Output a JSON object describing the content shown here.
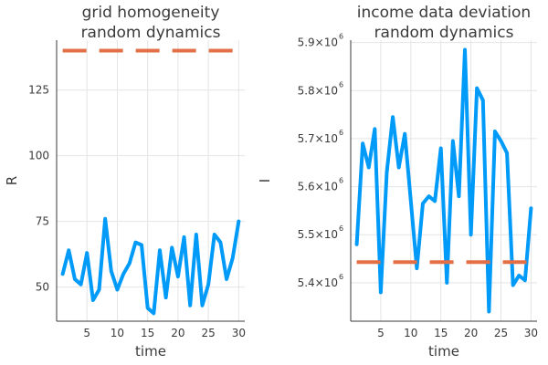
{
  "colors": {
    "series": "#009AF9",
    "reference": "#E26F46"
  },
  "chart_data": [
    {
      "type": "line",
      "title_lines": [
        "grid homogeneity",
        "random dynamics"
      ],
      "xlabel": "time",
      "ylabel": "R",
      "xlim": [
        0,
        31
      ],
      "ylim": [
        37,
        144
      ],
      "xticks": [
        5,
        10,
        15,
        20,
        25,
        30
      ],
      "yticks": [
        50,
        75,
        100,
        125
      ],
      "ytick_labels": [
        "50",
        "75",
        "100",
        "125"
      ],
      "grid": true,
      "series": [
        {
          "style": "solid",
          "x": [
            1,
            2,
            3,
            4,
            5,
            6,
            7,
            8,
            9,
            10,
            11,
            12,
            13,
            14,
            15,
            16,
            17,
            18,
            19,
            20,
            21,
            22,
            23,
            24,
            25,
            26,
            27,
            28,
            29,
            30
          ],
          "values": [
            55,
            64,
            53,
            51,
            63,
            45,
            49,
            76,
            56,
            49,
            55,
            59,
            67,
            66,
            42,
            40,
            64,
            46,
            65,
            54,
            69,
            43,
            70,
            43,
            51,
            70,
            67,
            53,
            61,
            75
          ]
        },
        {
          "style": "dashed",
          "x": [
            1,
            30
          ],
          "values": [
            140,
            140
          ]
        }
      ]
    },
    {
      "type": "line",
      "title_lines": [
        "income data deviation",
        "random dynamics"
      ],
      "xlabel": "time",
      "ylabel": "I",
      "xlim": [
        0,
        31
      ],
      "ylim": [
        5320000.0,
        5905000.0
      ],
      "xticks": [
        5,
        10,
        15,
        20,
        25,
        30
      ],
      "yticks": [
        5400000.0,
        5500000.0,
        5600000.0,
        5700000.0,
        5800000.0,
        5900000.0
      ],
      "ytick_labels": [
        {
          "mantissa": "5.4×10",
          "exp": "6"
        },
        {
          "mantissa": "5.5×10",
          "exp": "6"
        },
        {
          "mantissa": "5.6×10",
          "exp": "6"
        },
        {
          "mantissa": "5.7×10",
          "exp": "6"
        },
        {
          "mantissa": "5.8×10",
          "exp": "6"
        },
        {
          "mantissa": "5.9×10",
          "exp": "6"
        }
      ],
      "grid": true,
      "series": [
        {
          "style": "solid",
          "x": [
            1,
            2,
            3,
            4,
            5,
            6,
            7,
            8,
            9,
            10,
            11,
            12,
            13,
            14,
            15,
            16,
            17,
            18,
            19,
            20,
            21,
            22,
            23,
            24,
            25,
            26,
            27,
            28,
            29,
            30
          ],
          "values": [
            5480000,
            5690000,
            5640000,
            5720000,
            5380000,
            5630000,
            5745000,
            5640000,
            5710000,
            5570000,
            5430000,
            5565000,
            5580000,
            5570000,
            5680000,
            5400000,
            5695000,
            5580000,
            5885000,
            5500000,
            5805000,
            5780000,
            5340000,
            5715000,
            5695000,
            5670000,
            5395000,
            5415000,
            5405000,
            5555000
          ]
        },
        {
          "style": "dashed",
          "x": [
            1,
            30
          ],
          "values": [
            5443000,
            5443000
          ]
        }
      ]
    }
  ]
}
